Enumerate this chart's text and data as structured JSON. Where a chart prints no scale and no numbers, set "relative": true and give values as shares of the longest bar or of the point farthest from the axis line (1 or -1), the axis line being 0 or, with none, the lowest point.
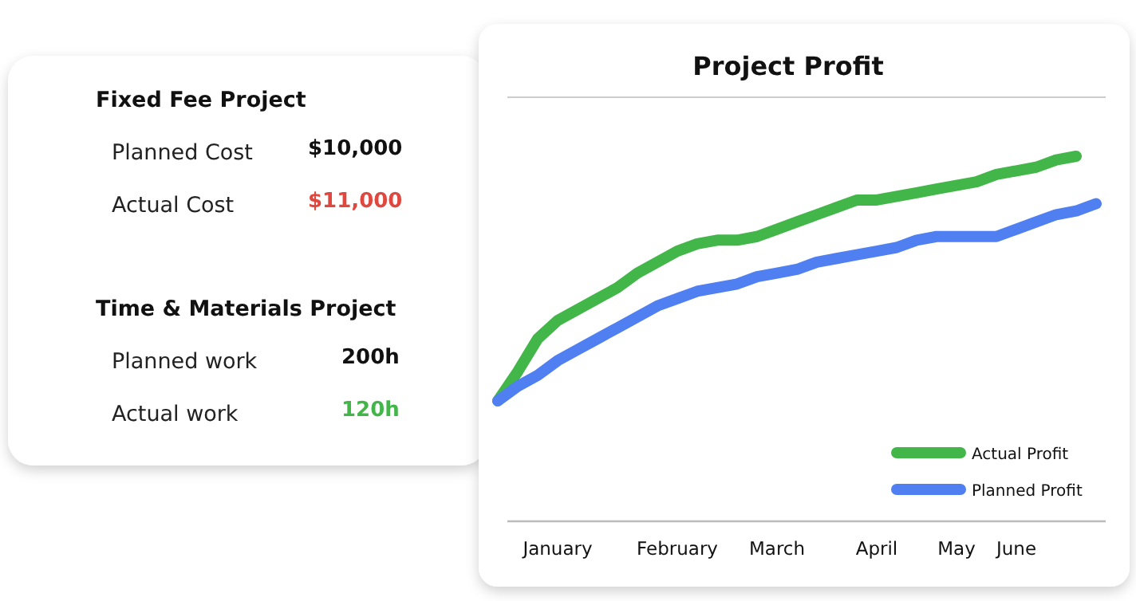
{
  "chart_data": [
    {
      "type": "other",
      "annotations": [
        "Fixed Fee Project",
        "Planned Cost",
        "$10,000",
        "Actual Cost",
        "$11,000",
        "Time & Materials Project",
        "Planned work",
        "200h",
        "Actual work",
        "120h"
      ]
    },
    {
      "type": "line",
      "title": "Project Profit",
      "relative": true,
      "categories": [
        null,
        null,
        null,
        "January",
        null,
        null,
        null,
        null,
        null,
        "February",
        null,
        null,
        null,
        null,
        "March",
        null,
        null,
        null,
        null,
        "April",
        null,
        null,
        null,
        "May",
        null,
        null,
        "June",
        null,
        null,
        null,
        null
      ],
      "legend": "bottom right",
      "line_style": "solid",
      "tick_labels": "x",
      "series": [
        {
          "name": "Actual Profit",
          "color": "#43b649",
          "values": [
            0.33,
            0.41,
            0.5,
            0.55,
            0.58,
            0.61,
            0.64,
            0.68,
            0.71,
            0.74,
            0.76,
            0.77,
            0.77,
            0.78,
            0.8,
            0.82,
            0.84,
            0.86,
            0.88,
            0.88,
            0.89,
            0.9,
            0.91,
            0.92,
            0.93,
            0.95,
            0.96,
            0.97,
            0.99,
            1,
            null
          ]
        },
        {
          "name": "Planned Profit",
          "color": "#4f7ff0",
          "values": [
            0.33,
            0.37,
            0.4,
            0.44,
            0.47,
            0.5,
            0.53,
            0.56,
            0.59,
            0.61,
            0.63,
            0.64,
            0.65,
            0.67,
            0.68,
            0.69,
            0.71,
            0.72,
            0.73,
            0.74,
            0.75,
            0.77,
            0.78,
            0.78,
            0.78,
            0.78,
            0.8,
            0.82,
            0.84,
            0.85,
            0.87
          ]
        }
      ]
    }
  ]
}
